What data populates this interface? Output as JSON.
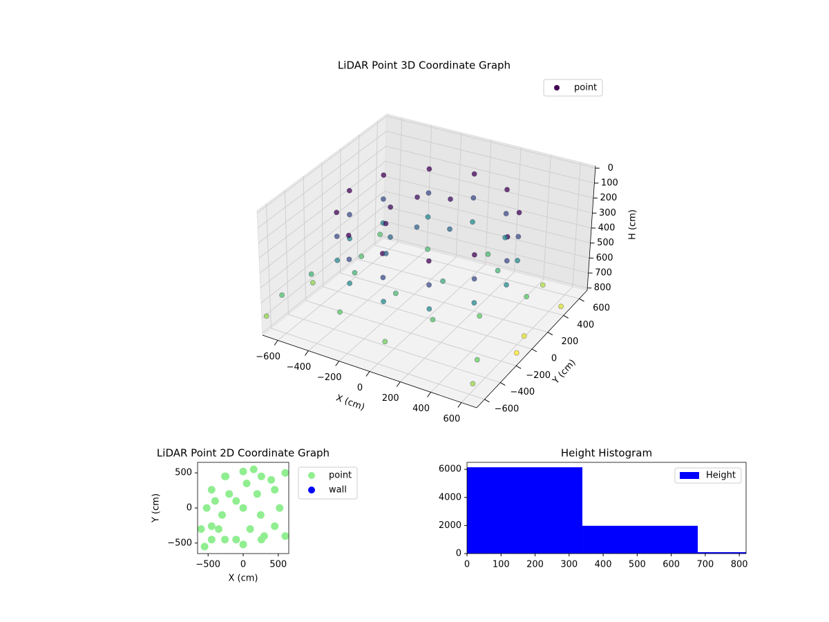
{
  "chart_data": [
    {
      "type": "scatter3d",
      "title": "LiDAR Point 3D Coordinate Graph",
      "xlabel": "X (cm)",
      "ylabel": "Y (cm)",
      "zlabel": "H (cm)",
      "xlim": [
        -700,
        700
      ],
      "ylim": [
        -700,
        700
      ],
      "zlim": [
        -15,
        815
      ],
      "z_inverted": true,
      "xticks": [
        {
          "value": -600,
          "label": "−600"
        },
        {
          "value": -400,
          "label": "−400"
        },
        {
          "value": -200,
          "label": "−200"
        },
        0,
        200,
        400,
        600
      ],
      "yticks": [
        {
          "value": -600,
          "label": "−600"
        },
        {
          "value": -400,
          "label": "−400"
        },
        {
          "value": -200,
          "label": "−200"
        },
        0,
        200,
        400,
        600
      ],
      "zticks": [
        0,
        100,
        200,
        300,
        400,
        500,
        600,
        700,
        800
      ],
      "colormap": "viridis",
      "grid": true,
      "legend": "upper right",
      "series": [
        {
          "name": "point",
          "x": [
            520,
            520,
            520,
            450,
            450,
            450,
            260,
            260,
            260,
            0,
            0,
            0,
            -260,
            -260,
            -260,
            -450,
            -450,
            -450,
            -520,
            -520,
            -520,
            -450,
            -450,
            -450,
            -260,
            -260,
            -260,
            0,
            0,
            0,
            260,
            260,
            260,
            450,
            450,
            450,
            0,
            0,
            -177,
            -177,
            -250,
            -250,
            -177,
            -177,
            -600,
            -500,
            -300,
            -100,
            100,
            200,
            300,
            -200,
            400,
            -650,
            50,
            550,
            -400,
            150,
            600,
            -550,
            650,
            680,
            650,
            620,
            -680,
            500,
            -650
          ],
          "y": [
            0,
            0,
            0,
            260,
            260,
            260,
            450,
            450,
            450,
            520,
            520,
            520,
            450,
            450,
            450,
            260,
            260,
            260,
            0,
            0,
            0,
            -260,
            -260,
            -260,
            -450,
            -450,
            -450,
            -520,
            -520,
            -520,
            -450,
            -450,
            -450,
            -260,
            -260,
            -260,
            250,
            250,
            177,
            177,
            0,
            0,
            -177,
            -177,
            -300,
            100,
            -500,
            -200,
            0,
            -300,
            300,
            350,
            -100,
            -550,
            -600,
            200,
            -150,
            450,
            -500,
            400,
            -650,
            400,
            -100,
            50,
            -680,
            500,
            -200
          ],
          "z": [
            120,
            280,
            440,
            120,
            280,
            440,
            120,
            280,
            440,
            120,
            280,
            440,
            120,
            280,
            440,
            120,
            280,
            440,
            120,
            280,
            440,
            120,
            280,
            440,
            120,
            280,
            440,
            120,
            280,
            440,
            120,
            280,
            440,
            120,
            280,
            440,
            150,
            350,
            150,
            350,
            150,
            350,
            150,
            350,
            560,
            600,
            620,
            580,
            540,
            610,
            570,
            590,
            630,
            600,
            650,
            620,
            560,
            580,
            640,
            610,
            700,
            760,
            800,
            780,
            690,
            720,
            680
          ]
        }
      ]
    },
    {
      "type": "scatter",
      "title": "LiDAR Point 2D Coordinate Graph",
      "xlabel": "X (cm)",
      "ylabel": "Y (cm)",
      "xlim": [
        -650,
        650
      ],
      "ylim": [
        -650,
        650
      ],
      "xticks": [
        {
          "value": -500,
          "label": "−500"
        },
        0,
        500
      ],
      "yticks": [
        {
          "value": -500,
          "label": "−500"
        },
        0,
        500
      ],
      "legend": "outside right",
      "series": [
        {
          "name": "point",
          "color": "#90ee90",
          "x": [
            520,
            450,
            260,
            0,
            -260,
            -450,
            -520,
            -450,
            -260,
            0,
            260,
            450,
            0,
            -200,
            -300,
            100,
            200,
            -100,
            300,
            -450,
            -550,
            -600,
            -400,
            -250,
            150,
            400,
            600,
            600,
            -100,
            50,
            250,
            -350
          ],
          "y": [
            0,
            260,
            450,
            520,
            450,
            260,
            0,
            -260,
            -450,
            -520,
            -450,
            -260,
            0,
            200,
            -100,
            -300,
            200,
            -450,
            -400,
            -450,
            -550,
            -300,
            100,
            450,
            550,
            400,
            500,
            -400,
            100,
            350,
            -100,
            -300
          ]
        },
        {
          "name": "wall",
          "color": "#0000ff",
          "x": [],
          "y": []
        }
      ]
    },
    {
      "type": "histogram",
      "title": "Height Histogram",
      "bins": [
        0,
        339,
        678,
        1017
      ],
      "xlim": [
        0,
        820
      ],
      "ylim": [
        0,
        6500
      ],
      "xticks": [
        0,
        100,
        200,
        300,
        400,
        500,
        600,
        700,
        800
      ],
      "yticks": [
        0,
        2000,
        4000,
        6000
      ],
      "legend": "upper right",
      "series": [
        {
          "name": "Height",
          "color": "#0000ff",
          "values": [
            6150,
            1980,
            100
          ]
        }
      ]
    }
  ]
}
